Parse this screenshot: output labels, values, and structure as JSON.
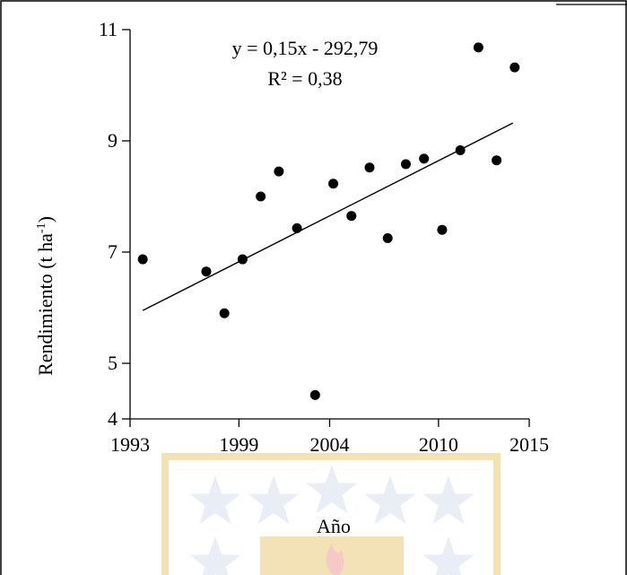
{
  "chart_data": {
    "type": "scatter",
    "title": "",
    "xlabel": "Año",
    "ylabel": "Rendimiento (t ha",
    "ylabel_sup": "-1",
    "ylabel_tail": ")",
    "xlim": [
      1993,
      2015
    ],
    "ylim": [
      4,
      11
    ],
    "xticks": [
      1993,
      1999,
      2004,
      2010,
      2015
    ],
    "yticks": [
      4,
      5,
      7,
      9,
      11
    ],
    "equation": "y = 0,15x - 292,79",
    "r2": "R² = 0,38",
    "trendline": {
      "slope": 0.15,
      "intercept": -292.79,
      "x_range": [
        1993.7,
        2014.1
      ]
    },
    "points": [
      {
        "x": 1993.7,
        "y": 6.87
      },
      {
        "x": 1997.2,
        "y": 6.65
      },
      {
        "x": 1998.2,
        "y": 5.9
      },
      {
        "x": 1999.2,
        "y": 6.87
      },
      {
        "x": 2000.2,
        "y": 8.0
      },
      {
        "x": 2001.2,
        "y": 8.45
      },
      {
        "x": 2002.2,
        "y": 7.43
      },
      {
        "x": 2003.2,
        "y": 4.43
      },
      {
        "x": 2004.2,
        "y": 8.23
      },
      {
        "x": 2005.2,
        "y": 7.65
      },
      {
        "x": 2006.2,
        "y": 8.52
      },
      {
        "x": 2007.2,
        "y": 7.25
      },
      {
        "x": 2008.2,
        "y": 8.58
      },
      {
        "x": 2009.2,
        "y": 8.68
      },
      {
        "x": 2010.2,
        "y": 7.4
      },
      {
        "x": 2011.2,
        "y": 8.83
      },
      {
        "x": 2012.2,
        "y": 10.68
      },
      {
        "x": 2013.2,
        "y": 8.65
      },
      {
        "x": 2014.2,
        "y": 10.32
      }
    ],
    "grid": false,
    "legend": "none"
  },
  "watermark": {
    "colors": {
      "stars": "#e9edf5",
      "shield": "#f3e2b5",
      "flame": "#f6c9c9"
    }
  }
}
